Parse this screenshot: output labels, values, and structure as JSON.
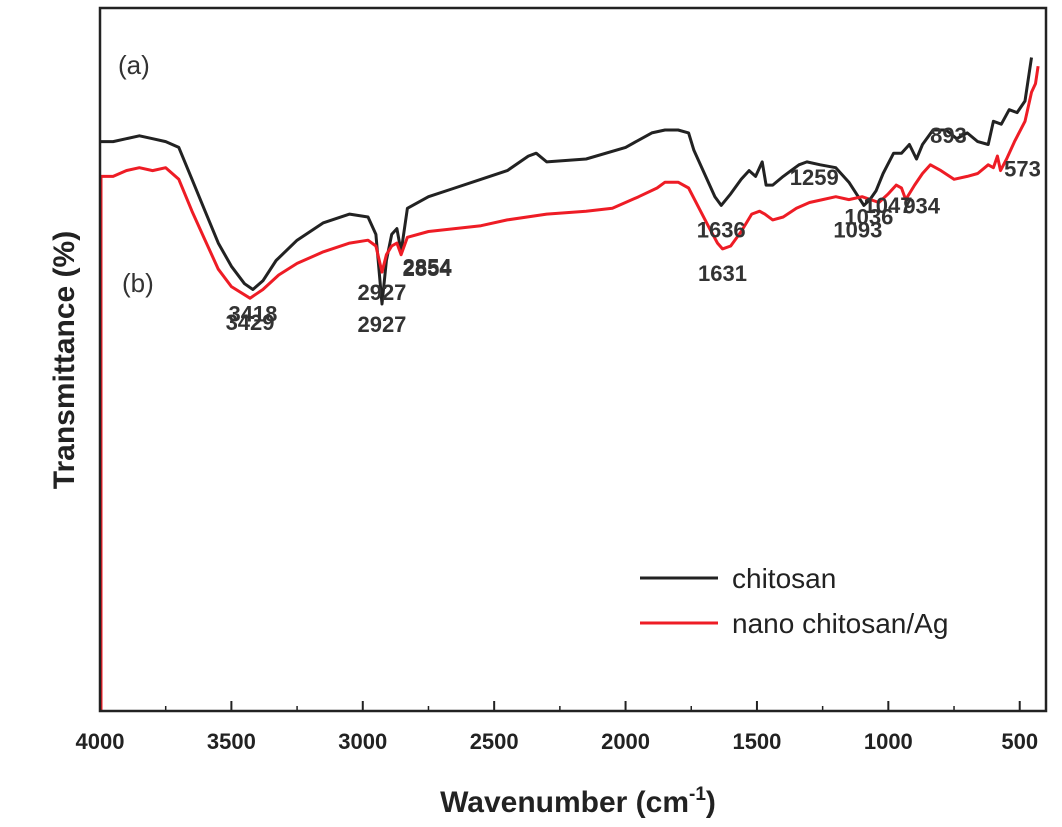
{
  "chart_data": {
    "type": "line",
    "xlabel": "Wavenumber (cm",
    "xlabel_sup": "-1",
    "xlabel_close": ")",
    "ylabel": "Transmittance (%)",
    "xlim": [
      4000,
      400
    ],
    "x_ticks": [
      4000,
      3500,
      3000,
      2500,
      2000,
      1500,
      1000,
      500
    ],
    "legend_position": "lower-right",
    "panel_labels": [
      "(a)",
      "(b)"
    ],
    "series": [
      {
        "name": "chitosan",
        "color": "#222222",
        "points": [
          [
            4000,
            96
          ],
          [
            3950,
            96
          ],
          [
            3900,
            97
          ],
          [
            3850,
            98
          ],
          [
            3800,
            97
          ],
          [
            3750,
            96
          ],
          [
            3700,
            94
          ],
          [
            3650,
            83
          ],
          [
            3600,
            72
          ],
          [
            3550,
            61
          ],
          [
            3500,
            53
          ],
          [
            3450,
            47
          ],
          [
            3418,
            45
          ],
          [
            3380,
            48
          ],
          [
            3330,
            55
          ],
          [
            3250,
            62
          ],
          [
            3150,
            68
          ],
          [
            3050,
            71
          ],
          [
            2980,
            70
          ],
          [
            2950,
            64
          ],
          [
            2927,
            40
          ],
          [
            2910,
            55
          ],
          [
            2890,
            64
          ],
          [
            2870,
            66
          ],
          [
            2854,
            58
          ],
          [
            2830,
            73
          ],
          [
            2750,
            77
          ],
          [
            2650,
            80
          ],
          [
            2550,
            83
          ],
          [
            2450,
            86
          ],
          [
            2370,
            91
          ],
          [
            2340,
            92
          ],
          [
            2300,
            89
          ],
          [
            2150,
            90
          ],
          [
            2000,
            94
          ],
          [
            1900,
            99
          ],
          [
            1850,
            100
          ],
          [
            1800,
            100
          ],
          [
            1760,
            99
          ],
          [
            1740,
            93
          ],
          [
            1700,
            85
          ],
          [
            1660,
            77
          ],
          [
            1636,
            74
          ],
          [
            1600,
            78
          ],
          [
            1560,
            83
          ],
          [
            1530,
            86
          ],
          [
            1505,
            84
          ],
          [
            1480,
            89
          ],
          [
            1465,
            81
          ],
          [
            1440,
            81
          ],
          [
            1400,
            84
          ],
          [
            1370,
            86
          ],
          [
            1340,
            88
          ],
          [
            1310,
            89
          ],
          [
            1259,
            88
          ],
          [
            1200,
            87
          ],
          [
            1150,
            82
          ],
          [
            1093,
            74
          ],
          [
            1070,
            76
          ],
          [
            1047,
            79
          ],
          [
            1020,
            85
          ],
          [
            980,
            92
          ],
          [
            950,
            92
          ],
          [
            920,
            95
          ],
          [
            893,
            90
          ],
          [
            870,
            95
          ],
          [
            830,
            100
          ],
          [
            780,
            100
          ],
          [
            740,
            97
          ],
          [
            700,
            99
          ],
          [
            660,
            96
          ],
          [
            620,
            95
          ],
          [
            600,
            103
          ],
          [
            570,
            102
          ],
          [
            540,
            107
          ],
          [
            510,
            106
          ],
          [
            480,
            110
          ],
          [
            455,
            125
          ]
        ]
      },
      {
        "name": "nano chitosan/Ag",
        "color": "#ee1c25",
        "points": [
          [
            4000,
            84
          ],
          [
            3950,
            84
          ],
          [
            3900,
            86
          ],
          [
            3850,
            87
          ],
          [
            3800,
            86
          ],
          [
            3750,
            87
          ],
          [
            3700,
            83
          ],
          [
            3650,
            72
          ],
          [
            3600,
            62
          ],
          [
            3550,
            52
          ],
          [
            3500,
            46
          ],
          [
            3429,
            42
          ],
          [
            3380,
            45
          ],
          [
            3320,
            50
          ],
          [
            3250,
            54
          ],
          [
            3150,
            58
          ],
          [
            3050,
            61
          ],
          [
            2980,
            62
          ],
          [
            2950,
            60
          ],
          [
            2927,
            51
          ],
          [
            2910,
            57
          ],
          [
            2890,
            60
          ],
          [
            2870,
            61
          ],
          [
            2854,
            57
          ],
          [
            2830,
            63
          ],
          [
            2750,
            65
          ],
          [
            2650,
            66
          ],
          [
            2550,
            67
          ],
          [
            2450,
            69
          ],
          [
            2300,
            71
          ],
          [
            2150,
            72
          ],
          [
            2050,
            73
          ],
          [
            1950,
            77
          ],
          [
            1880,
            80
          ],
          [
            1850,
            82
          ],
          [
            1800,
            82
          ],
          [
            1760,
            80
          ],
          [
            1720,
            73
          ],
          [
            1680,
            66
          ],
          [
            1650,
            61
          ],
          [
            1631,
            59
          ],
          [
            1600,
            60
          ],
          [
            1560,
            65
          ],
          [
            1520,
            71
          ],
          [
            1490,
            72
          ],
          [
            1470,
            71
          ],
          [
            1440,
            69
          ],
          [
            1400,
            70
          ],
          [
            1350,
            73
          ],
          [
            1300,
            75
          ],
          [
            1250,
            76
          ],
          [
            1200,
            77
          ],
          [
            1150,
            76
          ],
          [
            1100,
            77
          ],
          [
            1036,
            75
          ],
          [
            1000,
            78
          ],
          [
            970,
            81
          ],
          [
            950,
            80
          ],
          [
            934,
            76
          ],
          [
            900,
            81
          ],
          [
            870,
            85
          ],
          [
            840,
            88
          ],
          [
            800,
            86
          ],
          [
            750,
            83
          ],
          [
            700,
            84
          ],
          [
            660,
            85
          ],
          [
            620,
            88
          ],
          [
            600,
            87
          ],
          [
            585,
            91
          ],
          [
            573,
            86
          ],
          [
            550,
            90
          ],
          [
            520,
            96
          ],
          [
            480,
            103
          ],
          [
            455,
            113
          ],
          [
            440,
            116
          ],
          [
            430,
            122
          ]
        ]
      }
    ],
    "annotations": [
      {
        "series": 0,
        "text": "3418",
        "x": 3418,
        "y": 45
      },
      {
        "series": 0,
        "text": "2927",
        "x": 2927,
        "y": 40
      },
      {
        "series": 0,
        "text": "2854",
        "x": 2854,
        "y": 58
      },
      {
        "series": 0,
        "text": "1636",
        "x": 1636,
        "y": 74
      },
      {
        "series": 0,
        "text": "1259",
        "x": 1259,
        "y": 88
      },
      {
        "series": 0,
        "text": "1093",
        "x": 1093,
        "y": 74
      },
      {
        "series": 0,
        "text": "1047",
        "x": 1047,
        "y": 79
      },
      {
        "series": 0,
        "text": "893",
        "x": 893,
        "y": 90
      },
      {
        "series": 1,
        "text": "3429",
        "x": 3429,
        "y": 42
      },
      {
        "series": 1,
        "text": "2927",
        "x": 2927,
        "y": 51
      },
      {
        "series": 1,
        "text": "2854",
        "x": 2854,
        "y": 57
      },
      {
        "series": 1,
        "text": "1631",
        "x": 1631,
        "y": 59
      },
      {
        "series": 1,
        "text": "1036",
        "x": 1036,
        "y": 75
      },
      {
        "series": 1,
        "text": "934",
        "x": 934,
        "y": 76
      },
      {
        "series": 1,
        "text": "573",
        "x": 573,
        "y": 86
      }
    ]
  }
}
